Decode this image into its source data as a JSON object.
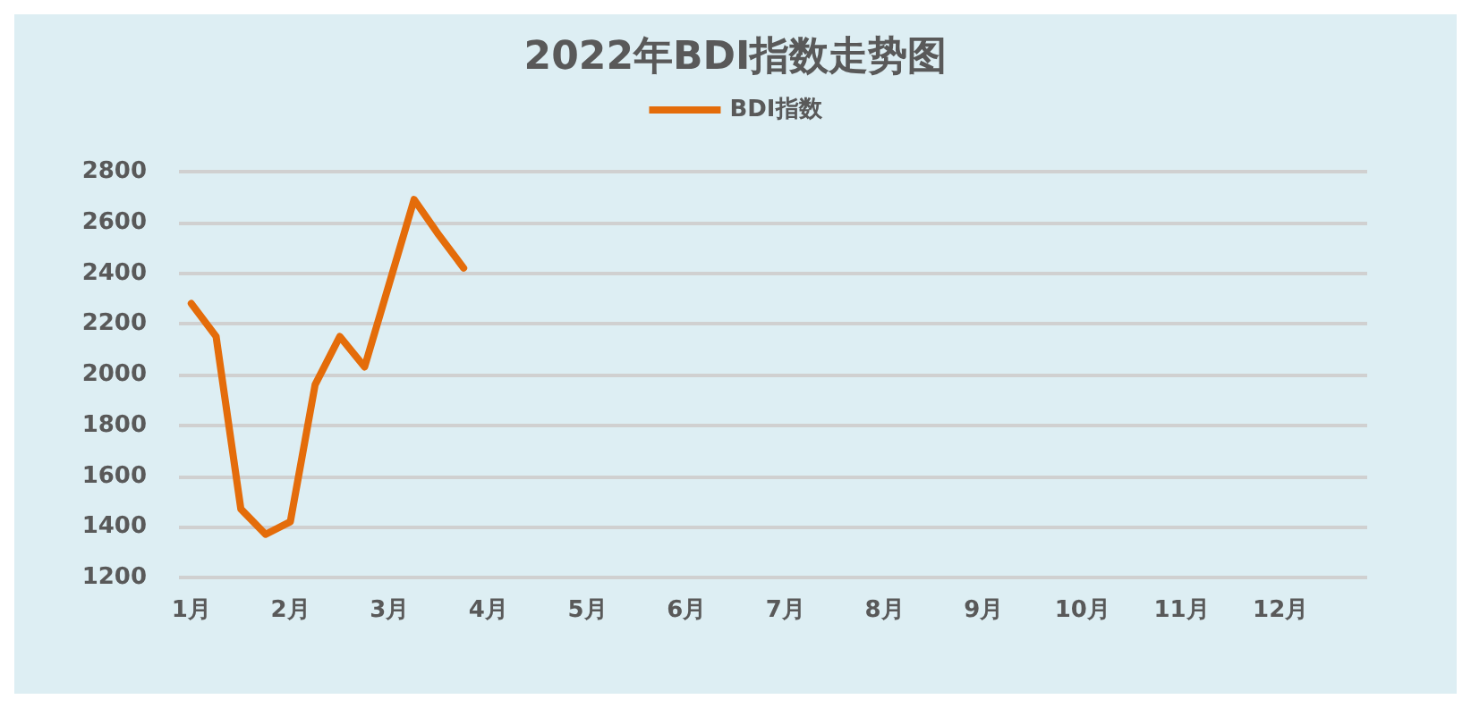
{
  "chart_data": {
    "type": "line",
    "title": "2022年BDI指数走势图",
    "categories": [
      "1月",
      null,
      null,
      null,
      "2月",
      null,
      null,
      null,
      "3月",
      null,
      null,
      null,
      "4月",
      null,
      null,
      null,
      "5月",
      null,
      null,
      null,
      "6月",
      null,
      null,
      null,
      "7月",
      null,
      null,
      null,
      "8月",
      null,
      null,
      null,
      "9月",
      null,
      null,
      null,
      "10月",
      null,
      null,
      null,
      "11月",
      null,
      null,
      null,
      "12月",
      null,
      null,
      null
    ],
    "series": [
      {
        "name": "BDI指数",
        "color": "#e46c0a",
        "values": [
          2280,
          2150,
          1470,
          1370,
          1420,
          1960,
          2150,
          2030,
          2360,
          2690,
          2550,
          2420,
          null,
          null,
          null,
          null,
          null,
          null,
          null,
          null,
          null,
          null,
          null,
          null,
          null,
          null,
          null,
          null,
          null,
          null,
          null,
          null,
          null,
          null,
          null,
          null,
          null,
          null,
          null,
          null,
          null,
          null,
          null,
          null,
          null,
          null,
          null,
          null
        ]
      }
    ],
    "ylim": [
      1200,
      2800
    ],
    "yticks": [
      1200,
      1400,
      1600,
      1800,
      2000,
      2200,
      2400,
      2600,
      2800
    ],
    "grid": "y",
    "legend": "top",
    "marker": "none",
    "line_style": "solid"
  }
}
